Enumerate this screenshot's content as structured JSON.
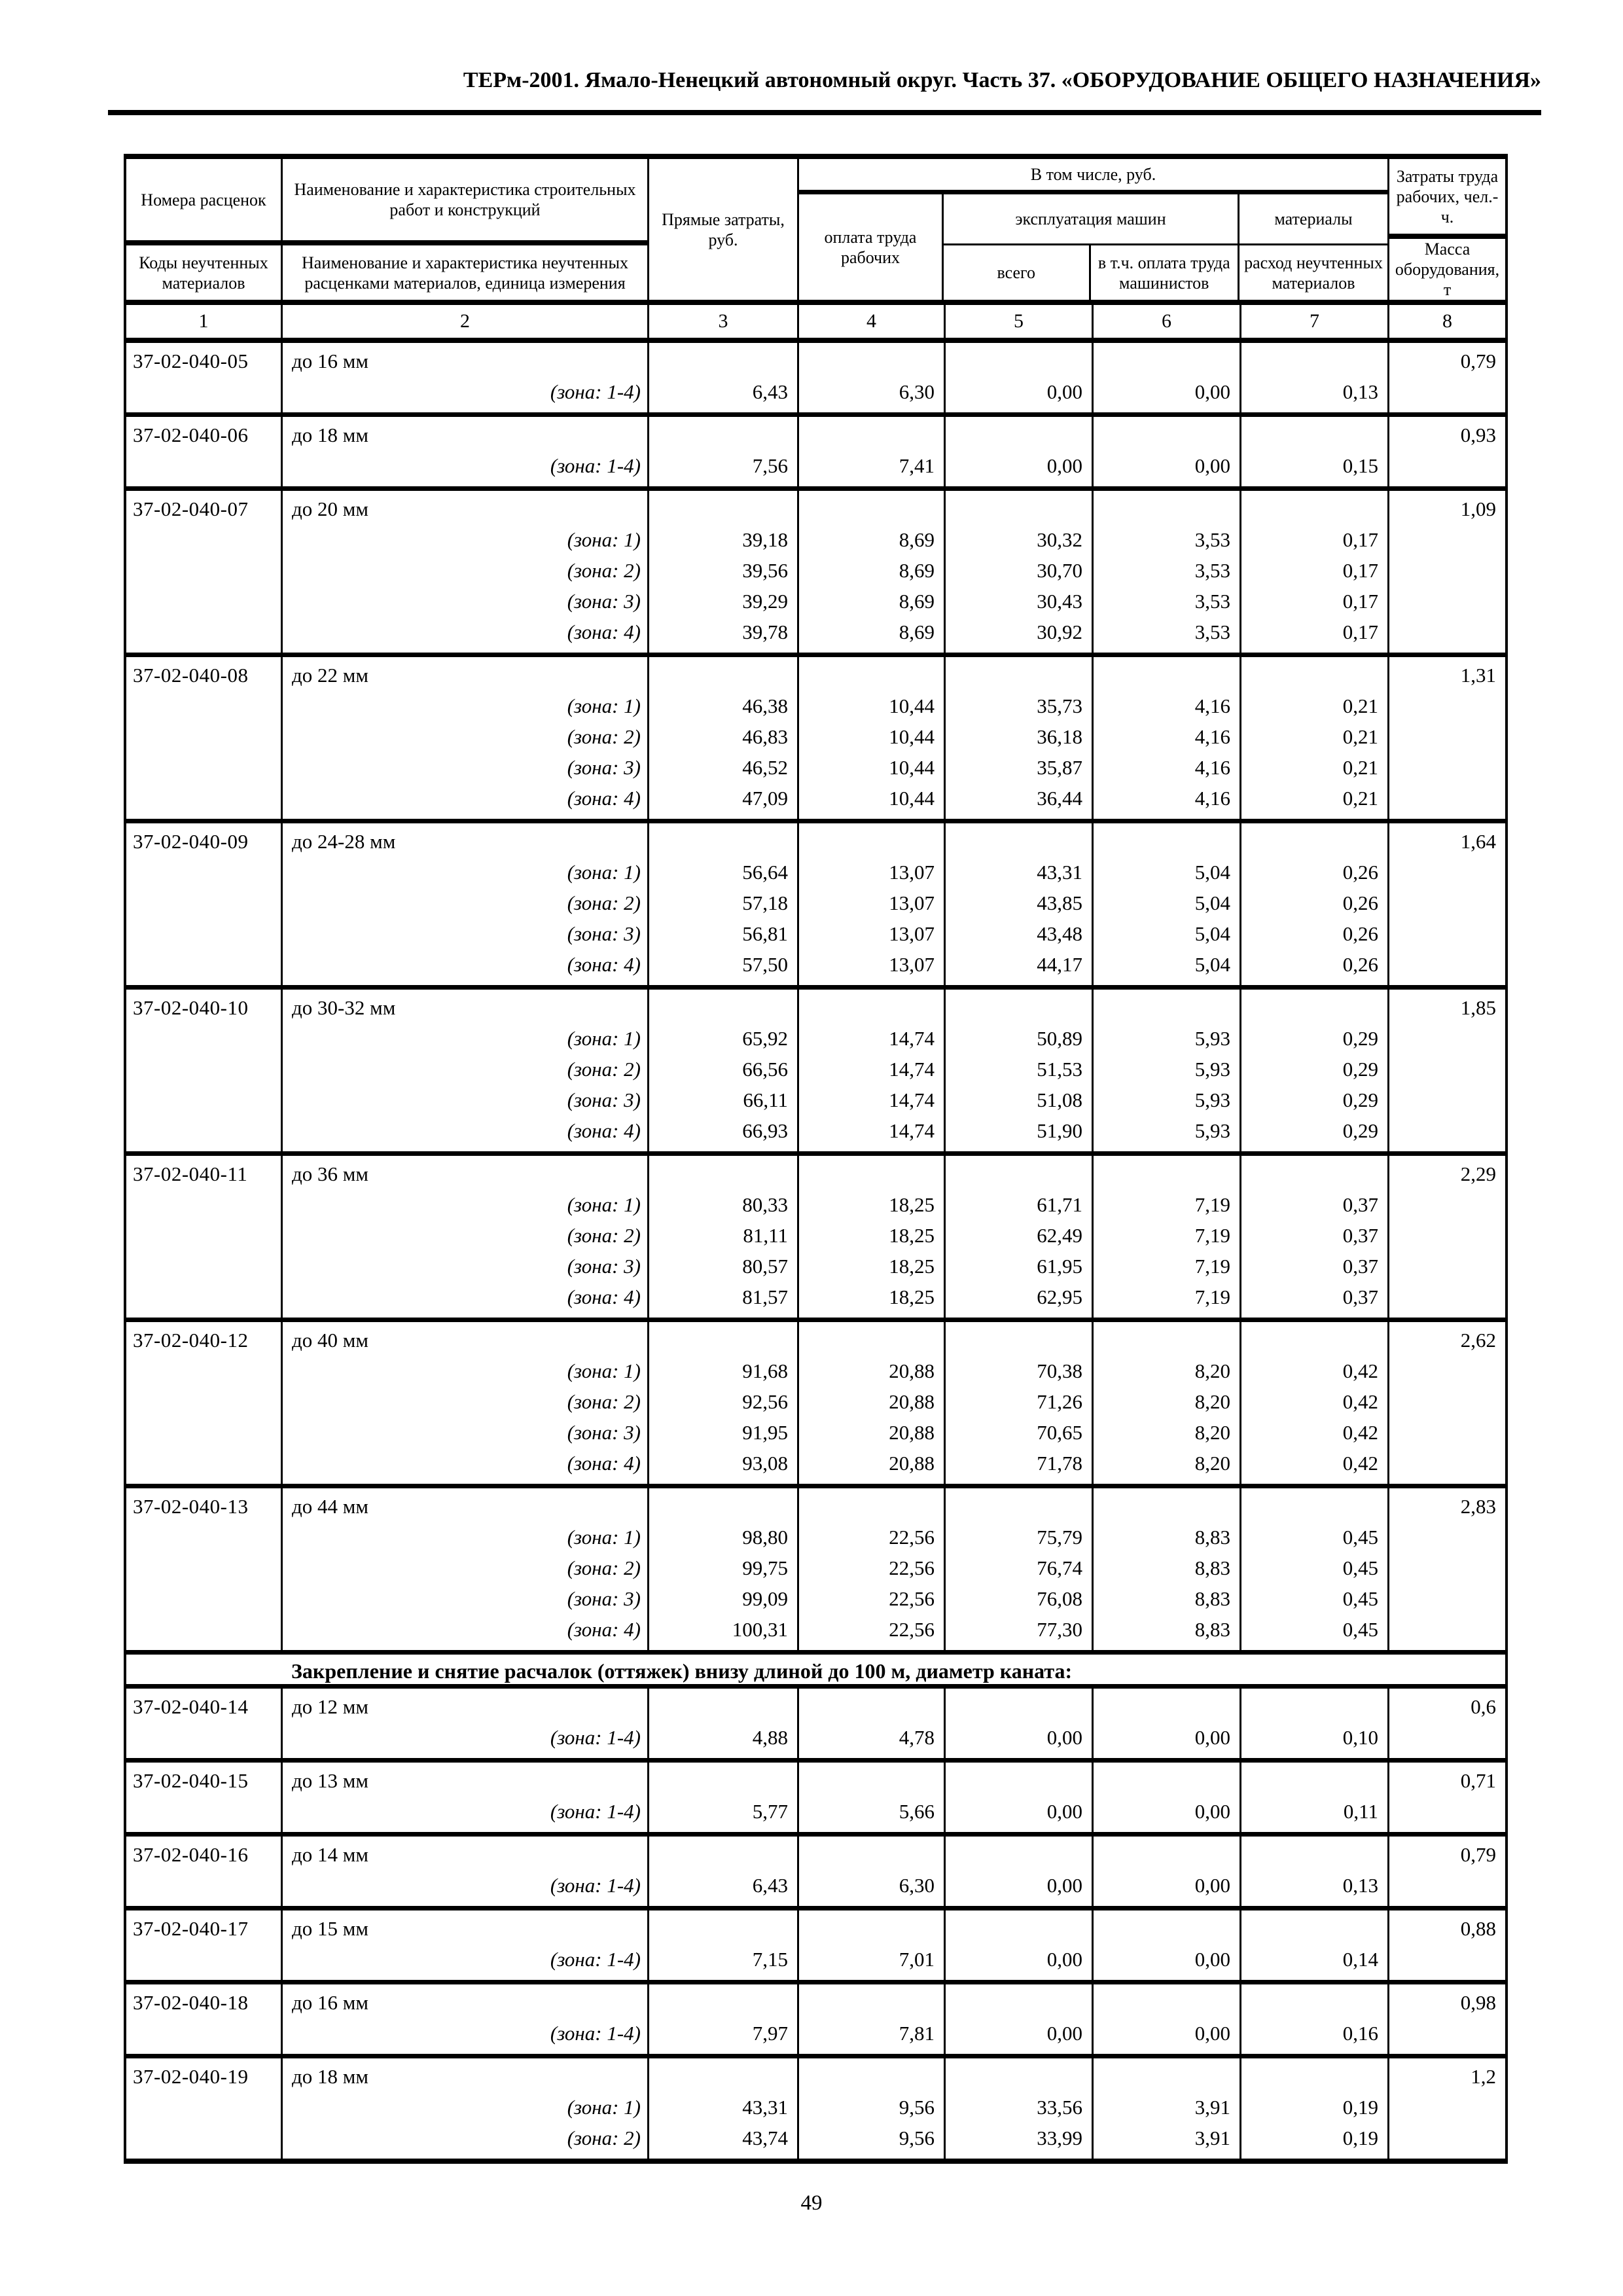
{
  "page": {
    "header_title": "ТЕРм-2001. Ямало-Ненецкий автономный округ. Часть 37. «ОБОРУДОВАНИЕ ОБЩЕГО НАЗНАЧЕНИЯ»",
    "page_number": "49"
  },
  "table": {
    "header": {
      "col1_top": "Номера расценок",
      "col1_bottom": "Коды неучтенных материалов",
      "col2_top": "Наименование и характеристика строительных работ и конструкций",
      "col2_bottom": "Наименование и характеристика неучтенных расценками материалов, единица измерения",
      "col3": "Прямые затраты, руб.",
      "group_top": "В том числе, руб.",
      "col4": "оплата труда рабочих",
      "machines_group": "эксплуатация машин",
      "col5": "всего",
      "col6": "в т.ч. оплата труда машинистов",
      "materials_group": "материалы",
      "col7": "расход неучтенных материалов",
      "col8_top": "Затраты труда рабочих, чел.-ч.",
      "col8_bottom": "Масса оборудования, т"
    },
    "column_numbers": [
      "1",
      "2",
      "3",
      "4",
      "5",
      "6",
      "7",
      "8"
    ],
    "rows": [
      {
        "type": "item",
        "code": "37-02-040-05",
        "desc": "до 16 мм",
        "mass": "0,79",
        "zones": [
          {
            "label": "(зона: 1-4)",
            "values": [
              "6,43",
              "6,30",
              "0,00",
              "0,00",
              "0,13"
            ]
          }
        ]
      },
      {
        "type": "item",
        "code": "37-02-040-06",
        "desc": "до 18 мм",
        "mass": "0,93",
        "zones": [
          {
            "label": "(зона: 1-4)",
            "values": [
              "7,56",
              "7,41",
              "0,00",
              "0,00",
              "0,15"
            ]
          }
        ]
      },
      {
        "type": "item",
        "code": "37-02-040-07",
        "desc": "до 20 мм",
        "mass": "1,09",
        "zones": [
          {
            "label": "(зона: 1)",
            "values": [
              "39,18",
              "8,69",
              "30,32",
              "3,53",
              "0,17"
            ]
          },
          {
            "label": "(зона: 2)",
            "values": [
              "39,56",
              "8,69",
              "30,70",
              "3,53",
              "0,17"
            ]
          },
          {
            "label": "(зона: 3)",
            "values": [
              "39,29",
              "8,69",
              "30,43",
              "3,53",
              "0,17"
            ]
          },
          {
            "label": "(зона: 4)",
            "values": [
              "39,78",
              "8,69",
              "30,92",
              "3,53",
              "0,17"
            ]
          }
        ]
      },
      {
        "type": "item",
        "code": "37-02-040-08",
        "desc": "до 22 мм",
        "mass": "1,31",
        "zones": [
          {
            "label": "(зона: 1)",
            "values": [
              "46,38",
              "10,44",
              "35,73",
              "4,16",
              "0,21"
            ]
          },
          {
            "label": "(зона: 2)",
            "values": [
              "46,83",
              "10,44",
              "36,18",
              "4,16",
              "0,21"
            ]
          },
          {
            "label": "(зона: 3)",
            "values": [
              "46,52",
              "10,44",
              "35,87",
              "4,16",
              "0,21"
            ]
          },
          {
            "label": "(зона: 4)",
            "values": [
              "47,09",
              "10,44",
              "36,44",
              "4,16",
              "0,21"
            ]
          }
        ]
      },
      {
        "type": "item",
        "code": "37-02-040-09",
        "desc": "до 24-28 мм",
        "mass": "1,64",
        "zones": [
          {
            "label": "(зона: 1)",
            "values": [
              "56,64",
              "13,07",
              "43,31",
              "5,04",
              "0,26"
            ]
          },
          {
            "label": "(зона: 2)",
            "values": [
              "57,18",
              "13,07",
              "43,85",
              "5,04",
              "0,26"
            ]
          },
          {
            "label": "(зона: 3)",
            "values": [
              "56,81",
              "13,07",
              "43,48",
              "5,04",
              "0,26"
            ]
          },
          {
            "label": "(зона: 4)",
            "values": [
              "57,50",
              "13,07",
              "44,17",
              "5,04",
              "0,26"
            ]
          }
        ]
      },
      {
        "type": "item",
        "code": "37-02-040-10",
        "desc": "до 30-32 мм",
        "mass": "1,85",
        "zones": [
          {
            "label": "(зона: 1)",
            "values": [
              "65,92",
              "14,74",
              "50,89",
              "5,93",
              "0,29"
            ]
          },
          {
            "label": "(зона: 2)",
            "values": [
              "66,56",
              "14,74",
              "51,53",
              "5,93",
              "0,29"
            ]
          },
          {
            "label": "(зона: 3)",
            "values": [
              "66,11",
              "14,74",
              "51,08",
              "5,93",
              "0,29"
            ]
          },
          {
            "label": "(зона: 4)",
            "values": [
              "66,93",
              "14,74",
              "51,90",
              "5,93",
              "0,29"
            ]
          }
        ]
      },
      {
        "type": "item",
        "code": "37-02-040-11",
        "desc": "до 36 мм",
        "mass": "2,29",
        "zones": [
          {
            "label": "(зона: 1)",
            "values": [
              "80,33",
              "18,25",
              "61,71",
              "7,19",
              "0,37"
            ]
          },
          {
            "label": "(зона: 2)",
            "values": [
              "81,11",
              "18,25",
              "62,49",
              "7,19",
              "0,37"
            ]
          },
          {
            "label": "(зона: 3)",
            "values": [
              "80,57",
              "18,25",
              "61,95",
              "7,19",
              "0,37"
            ]
          },
          {
            "label": "(зона: 4)",
            "values": [
              "81,57",
              "18,25",
              "62,95",
              "7,19",
              "0,37"
            ]
          }
        ]
      },
      {
        "type": "item",
        "code": "37-02-040-12",
        "desc": "до 40 мм",
        "mass": "2,62",
        "zones": [
          {
            "label": "(зона: 1)",
            "values": [
              "91,68",
              "20,88",
              "70,38",
              "8,20",
              "0,42"
            ]
          },
          {
            "label": "(зона: 2)",
            "values": [
              "92,56",
              "20,88",
              "71,26",
              "8,20",
              "0,42"
            ]
          },
          {
            "label": "(зона: 3)",
            "values": [
              "91,95",
              "20,88",
              "70,65",
              "8,20",
              "0,42"
            ]
          },
          {
            "label": "(зона: 4)",
            "values": [
              "93,08",
              "20,88",
              "71,78",
              "8,20",
              "0,42"
            ]
          }
        ]
      },
      {
        "type": "item",
        "code": "37-02-040-13",
        "desc": "до 44 мм",
        "mass": "2,83",
        "zones": [
          {
            "label": "(зона: 1)",
            "values": [
              "98,80",
              "22,56",
              "75,79",
              "8,83",
              "0,45"
            ]
          },
          {
            "label": "(зона: 2)",
            "values": [
              "99,75",
              "22,56",
              "76,74",
              "8,83",
              "0,45"
            ]
          },
          {
            "label": "(зона: 3)",
            "values": [
              "99,09",
              "22,56",
              "76,08",
              "8,83",
              "0,45"
            ]
          },
          {
            "label": "(зона: 4)",
            "values": [
              "100,31",
              "22,56",
              "77,30",
              "8,83",
              "0,45"
            ]
          }
        ]
      },
      {
        "type": "section",
        "text": "Закрепление и снятие расчалок (оттяжек) внизу длиной до 100 м, диаметр каната:"
      },
      {
        "type": "item",
        "code": "37-02-040-14",
        "desc": "до 12 мм",
        "mass": "0,6",
        "zones": [
          {
            "label": "(зона: 1-4)",
            "values": [
              "4,88",
              "4,78",
              "0,00",
              "0,00",
              "0,10"
            ]
          }
        ]
      },
      {
        "type": "item",
        "code": "37-02-040-15",
        "desc": "до 13 мм",
        "mass": "0,71",
        "zones": [
          {
            "label": "(зона: 1-4)",
            "values": [
              "5,77",
              "5,66",
              "0,00",
              "0,00",
              "0,11"
            ]
          }
        ]
      },
      {
        "type": "item",
        "code": "37-02-040-16",
        "desc": "до 14 мм",
        "mass": "0,79",
        "zones": [
          {
            "label": "(зона: 1-4)",
            "values": [
              "6,43",
              "6,30",
              "0,00",
              "0,00",
              "0,13"
            ]
          }
        ]
      },
      {
        "type": "item",
        "code": "37-02-040-17",
        "desc": "до 15 мм",
        "mass": "0,88",
        "zones": [
          {
            "label": "(зона: 1-4)",
            "values": [
              "7,15",
              "7,01",
              "0,00",
              "0,00",
              "0,14"
            ]
          }
        ]
      },
      {
        "type": "item",
        "code": "37-02-040-18",
        "desc": "до 16 мм",
        "mass": "0,98",
        "zones": [
          {
            "label": "(зона: 1-4)",
            "values": [
              "7,97",
              "7,81",
              "0,00",
              "0,00",
              "0,16"
            ]
          }
        ]
      },
      {
        "type": "item",
        "code": "37-02-040-19",
        "desc": "до 18 мм",
        "mass": "1,2",
        "zones": [
          {
            "label": "(зона: 1)",
            "values": [
              "43,31",
              "9,56",
              "33,56",
              "3,91",
              "0,19"
            ]
          },
          {
            "label": "(зона: 2)",
            "values": [
              "43,74",
              "9,56",
              "33,99",
              "3,91",
              "0,19"
            ]
          }
        ]
      }
    ]
  }
}
